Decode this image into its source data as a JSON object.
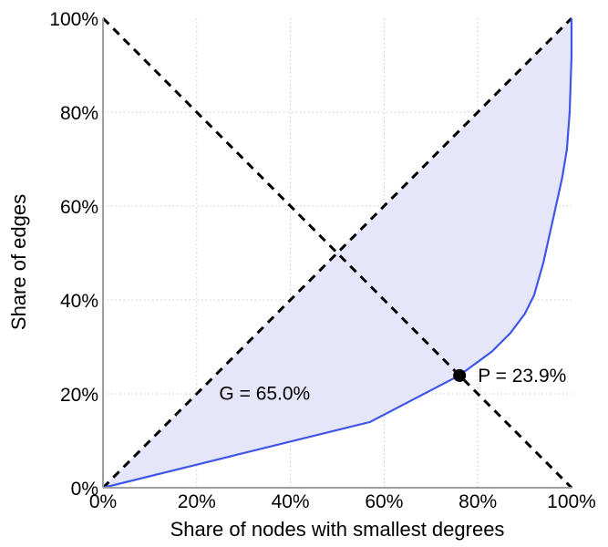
{
  "chart_data": {
    "type": "line",
    "title": "",
    "xlabel": "Share of nodes with smallest degrees",
    "ylabel": "Share of edges",
    "xlim": [
      0,
      100
    ],
    "ylim": [
      0,
      100
    ],
    "x_ticks": [
      "0%",
      "20%",
      "40%",
      "60%",
      "80%",
      "100%"
    ],
    "y_ticks": [
      "0%",
      "20%",
      "40%",
      "60%",
      "80%",
      "100%"
    ],
    "grid": true,
    "series": [
      {
        "name": "Lorenz curve",
        "color": "#3f56e6",
        "fill": "#e6e6fb",
        "x": [
          0,
          57,
          76,
          83,
          87,
          90,
          92,
          94,
          96,
          98,
          99,
          99.6,
          100,
          100
        ],
        "y": [
          0,
          14,
          23.9,
          29,
          33,
          37,
          41,
          48,
          57,
          66,
          72,
          80,
          92,
          100
        ]
      },
      {
        "name": "equality line",
        "style": "dashed",
        "color": "#000000",
        "x": [
          0,
          100
        ],
        "y": [
          0,
          100
        ]
      },
      {
        "name": "anti-diagonal",
        "style": "dashed",
        "color": "#000000",
        "x": [
          0,
          100
        ],
        "y": [
          100,
          0
        ]
      }
    ],
    "marker": {
      "x": 76.1,
      "y": 23.9,
      "color": "#000000"
    },
    "annotations": [
      {
        "id": "gini",
        "text": "G = 65.0%",
        "x": 34.5,
        "y": 19.5
      },
      {
        "id": "p",
        "text": "P = 23.9%",
        "x": 80,
        "y": 23.9
      }
    ]
  }
}
